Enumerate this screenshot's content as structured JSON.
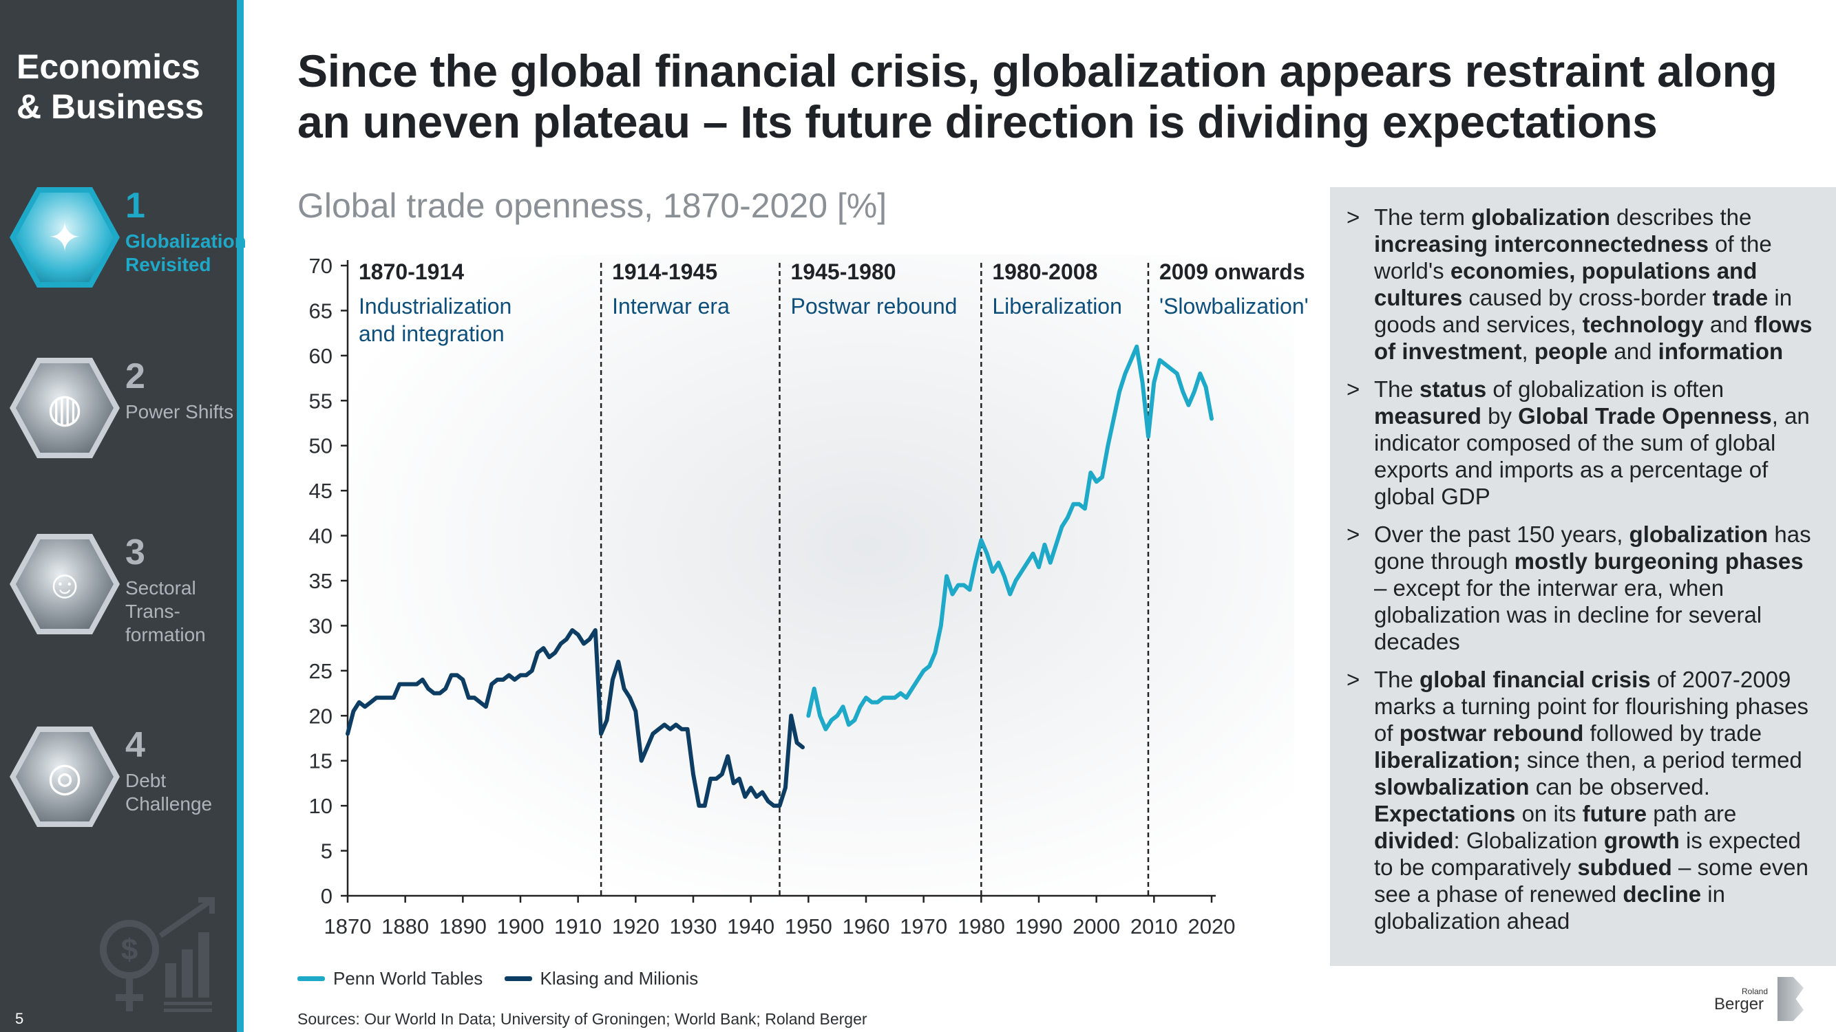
{
  "sidebar": {
    "section_title": "Economics & Business",
    "page_number": "5",
    "items": [
      {
        "number": "1",
        "label": "Globalization Revisited",
        "active": true
      },
      {
        "number": "2",
        "label": "Power Shifts",
        "active": false
      },
      {
        "number": "3",
        "label": "Sectoral Trans-formation",
        "active": false
      },
      {
        "number": "4",
        "label": "Debt Challenge",
        "active": false
      }
    ]
  },
  "headline": "Since the global financial crisis, globalization appears restraint along an uneven plateau – Its future direction is dividing expectations",
  "chart_subtitle": "Global trade openness, 1870-2020 [%]",
  "chart_data": {
    "type": "line",
    "title": "Global trade openness, 1870-2020 [%]",
    "xlim": [
      1870,
      2020
    ],
    "ylim": [
      0,
      70
    ],
    "x_ticks": [
      1870,
      1880,
      1890,
      1900,
      1910,
      1920,
      1930,
      1940,
      1950,
      1960,
      1970,
      1980,
      1990,
      2000,
      2010,
      2020
    ],
    "y_ticks": [
      0,
      5,
      10,
      15,
      20,
      25,
      30,
      35,
      40,
      45,
      50,
      55,
      60,
      65,
      70
    ],
    "grid": false,
    "legend_position": "bottom-left",
    "eras": [
      {
        "start": 1870,
        "end": 1914,
        "years": "1870-1914",
        "label": "Industrialization and integration"
      },
      {
        "start": 1914,
        "end": 1945,
        "years": "1914-1945",
        "label": "Interwar era"
      },
      {
        "start": 1945,
        "end": 1980,
        "years": "1945-1980",
        "label": "Postwar rebound"
      },
      {
        "start": 1980,
        "end": 2008,
        "years": "1980-2008",
        "label": "Liberalization"
      },
      {
        "start": 2009,
        "end": 2020,
        "years": "2009 onwards",
        "label": "'Slowbalization'"
      }
    ],
    "series": [
      {
        "name": "Penn World Tables",
        "color": "#1ea9c8",
        "x": [
          1950,
          1951,
          1952,
          1953,
          1954,
          1955,
          1956,
          1957,
          1958,
          1959,
          1960,
          1961,
          1962,
          1963,
          1964,
          1965,
          1966,
          1967,
          1968,
          1969,
          1970,
          1971,
          1972,
          1973,
          1974,
          1975,
          1976,
          1977,
          1978,
          1979,
          1980,
          1981,
          1982,
          1983,
          1984,
          1985,
          1986,
          1987,
          1988,
          1989,
          1990,
          1991,
          1992,
          1993,
          1994,
          1995,
          1996,
          1997,
          1998,
          1999,
          2000,
          2001,
          2002,
          2003,
          2004,
          2005,
          2006,
          2007,
          2008,
          2009,
          2010,
          2011,
          2012,
          2013,
          2014,
          2015,
          2016,
          2017,
          2018,
          2019,
          2020
        ],
        "y": [
          20,
          23,
          20,
          18.5,
          19.5,
          20,
          21,
          19,
          19.5,
          21,
          22,
          21.5,
          21.5,
          22,
          22,
          22,
          22.5,
          22,
          23,
          24,
          25,
          25.5,
          27,
          30,
          35.5,
          33.5,
          34.5,
          34.5,
          34,
          37,
          39.5,
          38,
          36,
          37,
          35.5,
          33.5,
          35,
          36,
          37,
          38,
          36.5,
          39,
          37,
          39,
          41,
          42,
          43.5,
          43.5,
          43,
          47,
          46,
          46.5,
          50,
          53,
          56,
          58,
          59.5,
          61,
          57,
          51,
          57,
          59.5,
          59,
          58.5,
          58,
          56,
          54.5,
          56,
          58,
          56.5,
          53
        ]
      },
      {
        "name": "Klasing and Milionis",
        "color": "#0d3d63",
        "x": [
          1870,
          1871,
          1872,
          1873,
          1874,
          1875,
          1876,
          1877,
          1878,
          1879,
          1880,
          1881,
          1882,
          1883,
          1884,
          1885,
          1886,
          1887,
          1888,
          1889,
          1890,
          1891,
          1892,
          1893,
          1894,
          1895,
          1896,
          1897,
          1898,
          1899,
          1900,
          1901,
          1902,
          1903,
          1904,
          1905,
          1906,
          1907,
          1908,
          1909,
          1910,
          1911,
          1912,
          1913,
          1914,
          1915,
          1916,
          1917,
          1918,
          1919,
          1920,
          1921,
          1922,
          1923,
          1924,
          1925,
          1926,
          1927,
          1928,
          1929,
          1930,
          1931,
          1932,
          1933,
          1934,
          1935,
          1936,
          1937,
          1938,
          1939,
          1940,
          1941,
          1942,
          1943,
          1944,
          1945,
          1946,
          1947,
          1948,
          1949
        ],
        "y": [
          18,
          20.5,
          21.5,
          21,
          21.5,
          22,
          22,
          22,
          22,
          23.5,
          23.5,
          23.5,
          23.5,
          24,
          23,
          22.5,
          22.5,
          23,
          24.5,
          24.5,
          24,
          22,
          22,
          21.5,
          21,
          23.5,
          24,
          24,
          24.5,
          24,
          24.5,
          24.5,
          25,
          27,
          27.5,
          26.5,
          27,
          28,
          28.5,
          29.5,
          29,
          28,
          28.5,
          29.5,
          18,
          19.5,
          24,
          26,
          23,
          22,
          20.5,
          15,
          16.5,
          18,
          18.5,
          19,
          18.5,
          19,
          18.5,
          18.5,
          13.5,
          10,
          10,
          13,
          13,
          13.5,
          15.5,
          12.5,
          13,
          11,
          12,
          11,
          11.5,
          10.5,
          10,
          10,
          12,
          20,
          17,
          16.5
        ]
      }
    ]
  },
  "legend": [
    {
      "label": "Penn World Tables",
      "color": "#1ea9c8"
    },
    {
      "label": "Klasing and Milionis",
      "color": "#0d3d63"
    }
  ],
  "sources": "Sources: Our World In Data; University of Groningen; World Bank; Roland Berger",
  "panel": {
    "bullet_symbol": ">",
    "bullets": [
      [
        [
          "The term ",
          false
        ],
        [
          "globalization",
          true
        ],
        [
          " describes the ",
          false
        ],
        [
          "increasing interconnectedness",
          true
        ],
        [
          " of the world's ",
          false
        ],
        [
          "economies, populations and cultures",
          true
        ],
        [
          " caused by cross-border ",
          false
        ],
        [
          "trade",
          true
        ],
        [
          " in goods and services, ",
          false
        ],
        [
          "technology",
          true
        ],
        [
          " and ",
          false
        ],
        [
          "flows of investment",
          true
        ],
        [
          ", ",
          false
        ],
        [
          "people",
          true
        ],
        [
          " and ",
          false
        ],
        [
          "information",
          true
        ]
      ],
      [
        [
          "The ",
          false
        ],
        [
          "status",
          true
        ],
        [
          " of globalization is often ",
          false
        ],
        [
          "measured",
          true
        ],
        [
          " by ",
          false
        ],
        [
          "Global Trade Openness",
          true
        ],
        [
          ", an indicator composed of the sum of global exports and imports as a percentage of global GDP",
          false
        ]
      ],
      [
        [
          "Over the past 150 years, ",
          false
        ],
        [
          "globalization",
          true
        ],
        [
          " has gone through ",
          false
        ],
        [
          "mostly burgeoning phases",
          true
        ],
        [
          " – except for the interwar era, when globalization was in decline for several decades",
          false
        ]
      ],
      [
        [
          "The ",
          false
        ],
        [
          "global financial crisis",
          true
        ],
        [
          " of 2007-2009 marks a turning point for flourishing phases of ",
          false
        ],
        [
          "postwar rebound",
          true
        ],
        [
          " followed by trade ",
          false
        ],
        [
          "liberalization;",
          true
        ],
        [
          " since then, a period termed ",
          false
        ],
        [
          "slowbalization",
          true
        ],
        [
          " can be observed. ",
          false
        ],
        [
          "Expectations",
          true
        ],
        [
          " on its ",
          false
        ],
        [
          "future",
          true
        ],
        [
          " path are ",
          false
        ],
        [
          "divided",
          true
        ],
        [
          ": Globalization ",
          false
        ],
        [
          "growth",
          true
        ],
        [
          " is expected to be comparatively ",
          false
        ],
        [
          "subdued",
          true
        ],
        [
          " – some even see a phase of renewed ",
          false
        ],
        [
          "decline",
          true
        ],
        [
          " in globalization ahead",
          false
        ]
      ]
    ]
  },
  "logo": {
    "small": "Roland",
    "text": "Berger"
  }
}
